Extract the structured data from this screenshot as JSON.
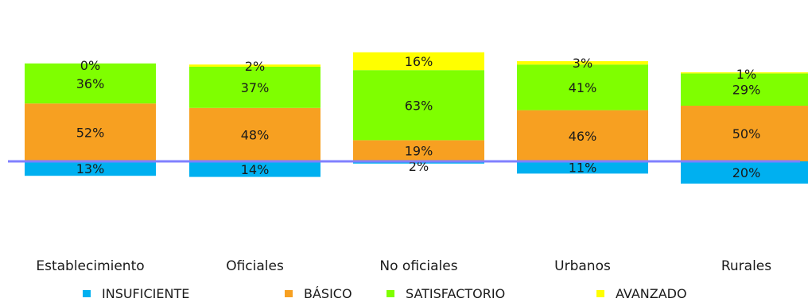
{
  "chart_data": {
    "type": "bar",
    "stacked": "diverging",
    "categories": [
      "Establecimiento",
      "Oficiales",
      "No oficiales",
      "Urbanos",
      "Rurales"
    ],
    "series": [
      {
        "name": "INSUFICIENTE",
        "color": "#00b0f0",
        "values": [
          13,
          14,
          2,
          11,
          20
        ],
        "labels": [
          "13%",
          "14%",
          "2%",
          "11%",
          "20%"
        ]
      },
      {
        "name": "BÁSICO",
        "color": "#f7a021",
        "values": [
          52,
          48,
          19,
          46,
          50
        ],
        "labels": [
          "52%",
          "48%",
          "19%",
          "46%",
          "50%"
        ]
      },
      {
        "name": "SATISFACTORIO",
        "color": "#7fff00",
        "values": [
          36,
          37,
          63,
          41,
          29
        ],
        "labels": [
          "36%",
          "37%",
          "63%",
          "41%",
          "29%"
        ]
      },
      {
        "name": "AVANZADO",
        "color": "#ffff00",
        "values": [
          0,
          2,
          16,
          3,
          1
        ],
        "labels": [
          "0%",
          "2%",
          "16%",
          "3%",
          "1%"
        ]
      }
    ],
    "baseline_color": "#8080ff",
    "grid": false,
    "legend_position": "bottom"
  }
}
